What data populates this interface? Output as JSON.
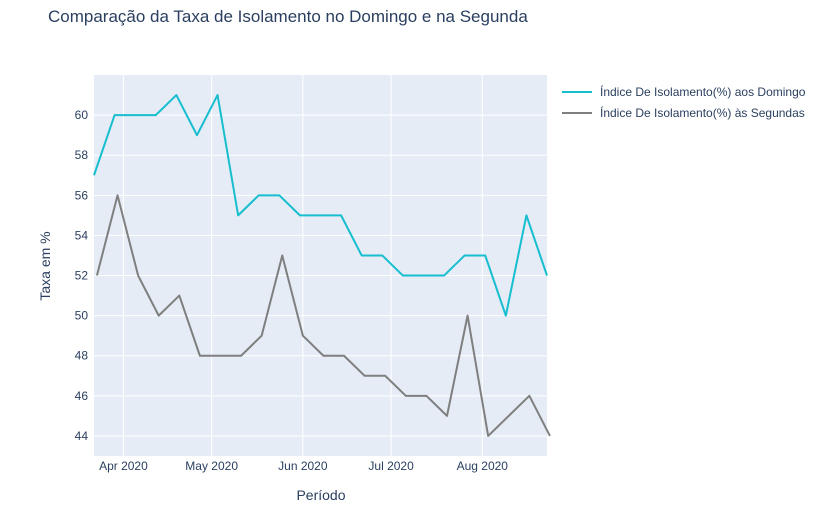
{
  "chart_data": {
    "type": "line",
    "title": "Comparação da Taxa de Isolamento no Domingo e na Segunda",
    "xlabel": "Período",
    "ylabel": "Taxa em %",
    "x_ticks": [
      {
        "date": "2020-04-01",
        "label": "Apr 2020"
      },
      {
        "date": "2020-05-01",
        "label": "May 2020"
      },
      {
        "date": "2020-06-01",
        "label": "Jun 2020"
      },
      {
        "date": "2020-07-01",
        "label": "Jul 2020"
      },
      {
        "date": "2020-08-01",
        "label": "Aug 2020"
      }
    ],
    "y_ticks": [
      44,
      46,
      48,
      50,
      52,
      54,
      56,
      58,
      60
    ],
    "xlim": [
      "2020-03-22",
      "2020-08-23"
    ],
    "ylim": [
      43,
      62
    ],
    "grid": true,
    "legend_position": "right",
    "colors": {
      "plot_bg": "#e5ecf6",
      "grid": "#ffffff",
      "text": "#2a3f5f"
    },
    "series": [
      {
        "name": "Índice De Isolamento(%) aos Domingo",
        "color": "#17becf",
        "x": [
          "2020-03-22",
          "2020-03-29",
          "2020-04-05",
          "2020-04-12",
          "2020-04-19",
          "2020-04-26",
          "2020-05-03",
          "2020-05-10",
          "2020-05-17",
          "2020-05-24",
          "2020-05-31",
          "2020-06-07",
          "2020-06-14",
          "2020-06-21",
          "2020-06-28",
          "2020-07-05",
          "2020-07-12",
          "2020-07-19",
          "2020-07-26",
          "2020-08-02",
          "2020-08-09",
          "2020-08-16",
          "2020-08-23"
        ],
        "y": [
          57,
          60,
          60,
          60,
          61,
          59,
          61,
          55,
          56,
          56,
          55,
          55,
          55,
          53,
          53,
          52,
          52,
          52,
          53,
          53,
          50,
          55,
          52
        ]
      },
      {
        "name": "Índice De Isolamento(%) às Segundas",
        "color": "#7f7f7f",
        "x": [
          "2020-03-23",
          "2020-03-30",
          "2020-04-06",
          "2020-04-13",
          "2020-04-20",
          "2020-04-27",
          "2020-05-04",
          "2020-05-11",
          "2020-05-18",
          "2020-05-25",
          "2020-06-01",
          "2020-06-08",
          "2020-06-15",
          "2020-06-22",
          "2020-06-29",
          "2020-07-06",
          "2020-07-13",
          "2020-07-20",
          "2020-07-27",
          "2020-08-03",
          "2020-08-10",
          "2020-08-17",
          "2020-08-24"
        ],
        "y": [
          52,
          56,
          52,
          50,
          51,
          48,
          48,
          48,
          49,
          53,
          49,
          48,
          48,
          47,
          47,
          46,
          46,
          45,
          50,
          44,
          45,
          46,
          44
        ]
      }
    ]
  }
}
